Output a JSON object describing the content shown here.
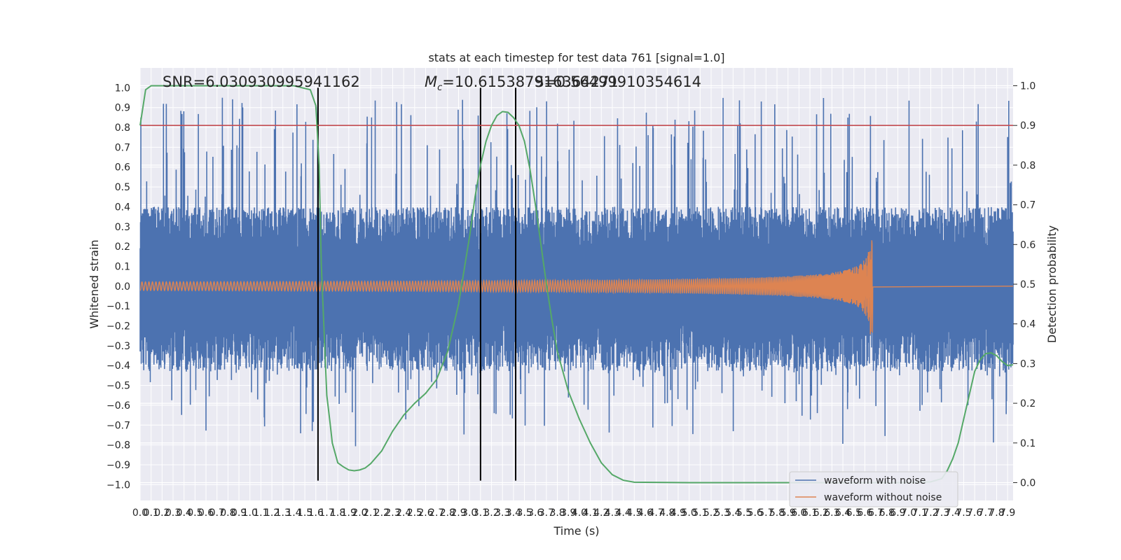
{
  "chart_data": {
    "type": "line",
    "title": "stats at each timestep for test data 761 [signal=1.0]",
    "xlabel": "Time (s)",
    "ylabel": "Whitened strain",
    "y2label": "Detection probability",
    "xlim": [
      0.0,
      7.95
    ],
    "ylim": [
      -1.08,
      1.1
    ],
    "y2lim": [
      -0.045,
      1.045
    ],
    "x_ticks": [
      0.0,
      0.1,
      0.2,
      0.3,
      0.4,
      0.5,
      0.6,
      0.7,
      0.8,
      0.9,
      1.0,
      1.1,
      1.2,
      1.3,
      1.4,
      1.5,
      1.6,
      1.7,
      1.8,
      1.9,
      2.0,
      2.1,
      2.2,
      2.3,
      2.4,
      2.5,
      2.6,
      2.7,
      2.8,
      2.9,
      3.0,
      3.1,
      3.2,
      3.3,
      3.4,
      3.5,
      3.6,
      3.7,
      3.8,
      3.9,
      4.0,
      4.1,
      4.2,
      4.3,
      4.4,
      4.5,
      4.6,
      4.7,
      4.8,
      4.9,
      5.0,
      5.1,
      5.2,
      5.3,
      5.4,
      5.5,
      5.6,
      5.7,
      5.8,
      5.9,
      6.0,
      6.1,
      6.2,
      6.3,
      6.4,
      6.5,
      6.6,
      6.7,
      6.8,
      6.9,
      7.0,
      7.1,
      7.2,
      7.3,
      7.4,
      7.5,
      7.6,
      7.7,
      7.8,
      7.9
    ],
    "x_tick_labels": [
      "0.0",
      "0.1",
      "0.2",
      "0.3",
      "0.4",
      "0.5",
      "0.6",
      "0.7",
      "0.8",
      "0.9",
      "1.0",
      "1.1",
      "1.2",
      "1.3",
      "1.4",
      "1.5",
      "1.6",
      "1.7",
      "1.8",
      "1.9",
      "2.0",
      "2.1",
      "2.2",
      "2.3",
      "2.4",
      "2.5",
      "2.6",
      "2.7",
      "2.8",
      "2.9",
      "3.0",
      "3.1",
      "3.2",
      "3.3",
      "3.4",
      "3.5",
      "3.6",
      "3.7",
      "3.8",
      "3.9",
      "4.0",
      "4.1",
      "4.2",
      "4.3",
      "4.4",
      "4.5",
      "4.6",
      "4.7",
      "4.8",
      "4.9",
      "5.0",
      "5.1",
      "5.2",
      "5.3",
      "5.4",
      "5.5",
      "5.6",
      "5.7",
      "5.8",
      "5.9",
      "6.0",
      "6.1",
      "6.2",
      "6.3",
      "6.4",
      "6.5",
      "6.6",
      "6.7",
      "6.8",
      "6.9",
      "7.0",
      "7.1",
      "7.2",
      "7.3",
      "7.4",
      "7.5",
      "7.6",
      "7.7",
      "7.8",
      "7.9"
    ],
    "y_ticks": [
      1.0,
      0.9,
      0.8,
      0.7,
      0.6,
      0.5,
      0.4,
      0.3,
      0.2,
      0.1,
      0.0,
      -0.1,
      -0.2,
      -0.3,
      -0.4,
      -0.5,
      -0.6,
      -0.7,
      -0.8,
      -0.9,
      -1.0
    ],
    "y_tick_labels": [
      "1.0",
      "0.9",
      "0.8",
      "0.7",
      "0.6",
      "0.5",
      "0.4",
      "0.3",
      "0.2",
      "0.1",
      "0.0",
      "−0.1",
      "−0.2",
      "−0.3",
      "−0.4",
      "−0.5",
      "−0.6",
      "−0.7",
      "−0.8",
      "−0.9",
      "−1.0"
    ],
    "y2_ticks": [
      1.0,
      0.9,
      0.8,
      0.7,
      0.6,
      0.5,
      0.4,
      0.3,
      0.2,
      0.1,
      0.0
    ],
    "y2_tick_labels": [
      "1.0",
      "0.9",
      "0.8",
      "0.7",
      "0.6",
      "0.5",
      "0.4",
      "0.3",
      "0.2",
      "0.1",
      "0.0"
    ],
    "grid": true,
    "legend_position": "lower-right",
    "series": [
      {
        "name": "waveform with noise",
        "color": "#4c72b0",
        "kind": "dense noisy strain, amplitude envelope roughly ±0.45 with spikes up to ±1.0"
      },
      {
        "name": "waveform without noise",
        "color": "#dd8452",
        "kind": "chirp",
        "t_merger": 6.67,
        "peak_amplitude": 0.24
      },
      {
        "name": "",
        "color": "#55a868",
        "axis": "right",
        "x": [
          0.0,
          0.05,
          0.1,
          0.2,
          0.5,
          1.0,
          1.4,
          1.55,
          1.6,
          1.63,
          1.65,
          1.68,
          1.7,
          1.73,
          1.75,
          1.78,
          1.8,
          1.85,
          1.9,
          1.95,
          2.0,
          2.05,
          2.1,
          2.2,
          2.3,
          2.4,
          2.5,
          2.6,
          2.7,
          2.8,
          2.9,
          3.0,
          3.05,
          3.1,
          3.15,
          3.2,
          3.25,
          3.3,
          3.35,
          3.4,
          3.45,
          3.5,
          3.55,
          3.6,
          3.65,
          3.7,
          3.75,
          3.8,
          3.9,
          4.0,
          4.1,
          4.2,
          4.3,
          4.4,
          4.5,
          5.0,
          6.0,
          7.0,
          7.2,
          7.3,
          7.35,
          7.4,
          7.45,
          7.5,
          7.55,
          7.6,
          7.65,
          7.7,
          7.75,
          7.8,
          7.85,
          7.9,
          7.95
        ],
        "y": [
          0.9,
          0.99,
          1.0,
          1.0,
          1.0,
          1.0,
          1.0,
          0.99,
          0.95,
          0.8,
          0.55,
          0.35,
          0.22,
          0.15,
          0.1,
          0.07,
          0.05,
          0.04,
          0.032,
          0.03,
          0.032,
          0.037,
          0.048,
          0.08,
          0.13,
          0.17,
          0.2,
          0.225,
          0.26,
          0.33,
          0.45,
          0.62,
          0.72,
          0.8,
          0.86,
          0.9,
          0.925,
          0.935,
          0.933,
          0.92,
          0.9,
          0.86,
          0.79,
          0.7,
          0.6,
          0.5,
          0.41,
          0.33,
          0.23,
          0.16,
          0.1,
          0.05,
          0.02,
          0.006,
          0.001,
          0.0,
          0.0,
          0.0,
          0.002,
          0.01,
          0.03,
          0.06,
          0.1,
          0.16,
          0.22,
          0.28,
          0.31,
          0.325,
          0.327,
          0.32,
          0.305,
          0.295,
          0.297
        ]
      }
    ],
    "threshold_line": {
      "y": 0.9,
      "axis": "right",
      "color": "#c44e52"
    },
    "vertical_markers": [
      1.62,
      3.1,
      3.42
    ],
    "vertical_marker_ylim": [
      -0.98,
      1.0
    ],
    "annotations": [
      {
        "text": "SNR=6.030930995941162",
        "x": 0.2,
        "y": 1.02
      },
      {
        "text": "=10.615387916364271",
        "math_prefix": "M",
        "math_sub": "c",
        "x": 2.6,
        "y": 1.02
      },
      {
        "text": "S=0.56499910354614",
        "x": 3.5,
        "y": 1.02
      }
    ]
  }
}
